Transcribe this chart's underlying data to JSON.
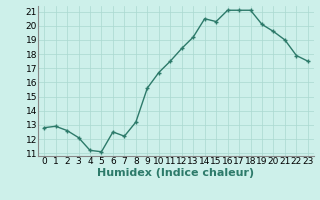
{
  "xlabel": "Humidex (Indice chaleur)",
  "x": [
    0,
    1,
    2,
    3,
    4,
    5,
    6,
    7,
    8,
    9,
    10,
    11,
    12,
    13,
    14,
    15,
    16,
    17,
    18,
    19,
    20,
    21,
    22,
    23
  ],
  "y": [
    12.8,
    12.9,
    12.6,
    12.1,
    11.2,
    11.1,
    12.5,
    12.2,
    13.2,
    15.6,
    16.7,
    17.5,
    18.4,
    19.2,
    20.5,
    20.3,
    21.1,
    21.1,
    21.1,
    20.1,
    19.6,
    19.0,
    17.9,
    17.5
  ],
  "line_color": "#2d7a6a",
  "marker": "+",
  "marker_size": 3.5,
  "marker_linewidth": 1.0,
  "bg_color": "#cdf0ea",
  "grid_color": "#aad8d0",
  "tick_label_fontsize": 6.5,
  "xlabel_fontsize": 8,
  "ylim": [
    10.8,
    21.4
  ],
  "yticks": [
    11,
    12,
    13,
    14,
    15,
    16,
    17,
    18,
    19,
    20,
    21
  ],
  "xticks": [
    0,
    1,
    2,
    3,
    4,
    5,
    6,
    7,
    8,
    9,
    10,
    11,
    12,
    13,
    14,
    15,
    16,
    17,
    18,
    19,
    20,
    21,
    22,
    23
  ],
  "linewidth": 1.0
}
